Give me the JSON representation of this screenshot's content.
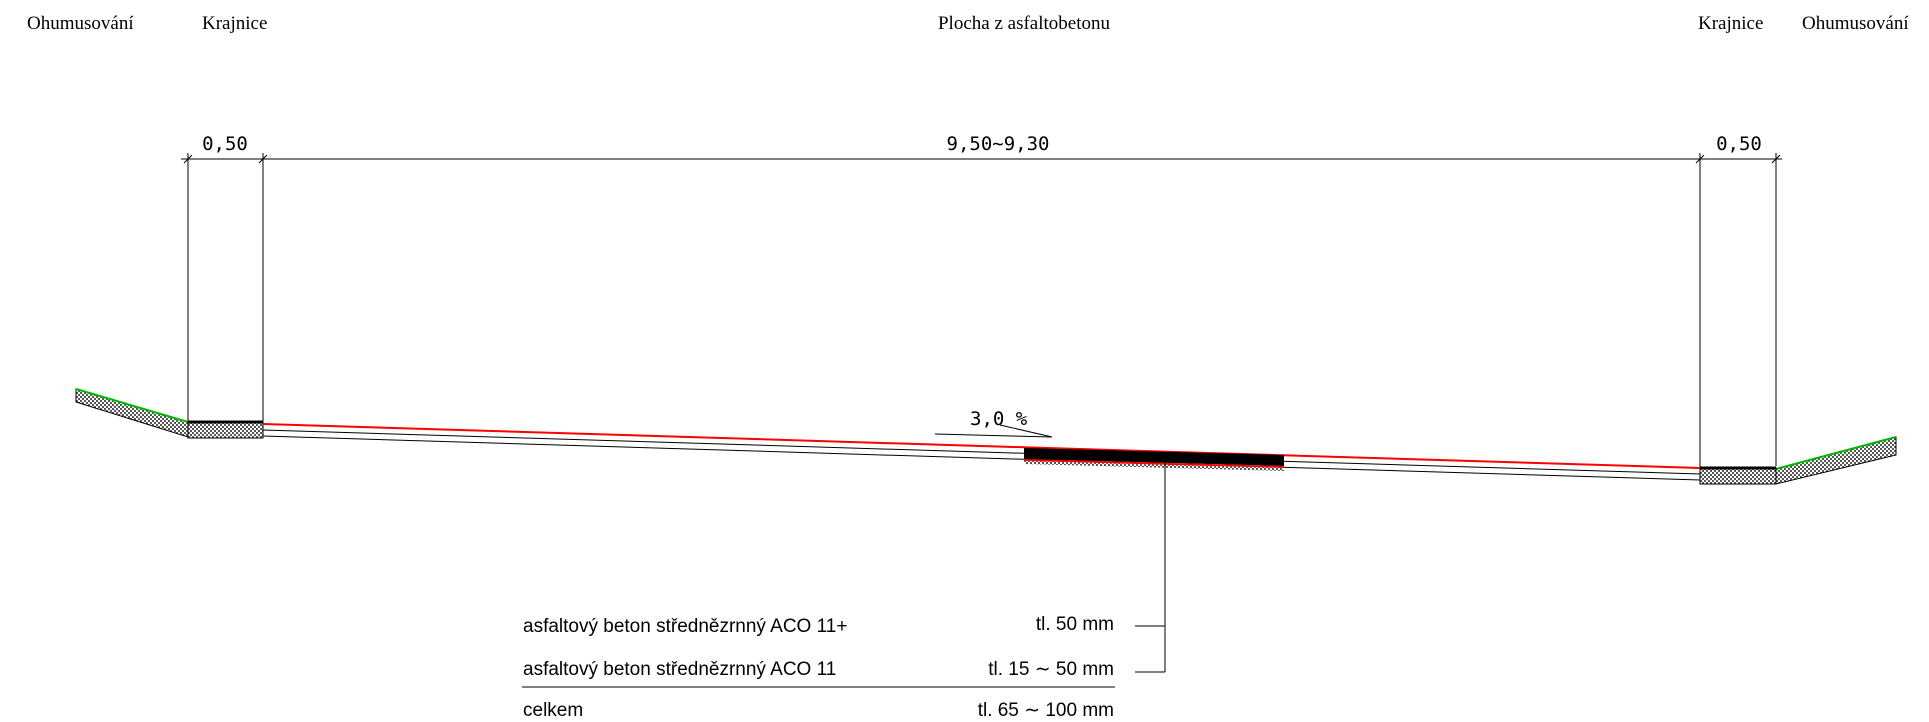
{
  "header": {
    "left_outer": "Ohumusování",
    "left_inner": "Krajnice",
    "center": "Plocha z asfaltobetonu",
    "right_inner": "Krajnice",
    "right_outer": "Ohumusování"
  },
  "dimensions": {
    "left": "0,50",
    "center": "9,50∼9,30",
    "right": "0,50"
  },
  "slope": "3,0 %",
  "layers": [
    {
      "name": "asfaltový beton střednězrnný ACO 11+",
      "thickness": "tl.  50 mm"
    },
    {
      "name": "asfaltový beton střednězrnný ACO 11",
      "thickness": "tl.  15 ∼ 50 mm"
    }
  ],
  "total": {
    "name": "celkem",
    "thickness": "tl.  65 ∼ 100 mm"
  },
  "colors": {
    "surface": "#ff0000",
    "grass": "#00b400",
    "line": "#000000"
  }
}
